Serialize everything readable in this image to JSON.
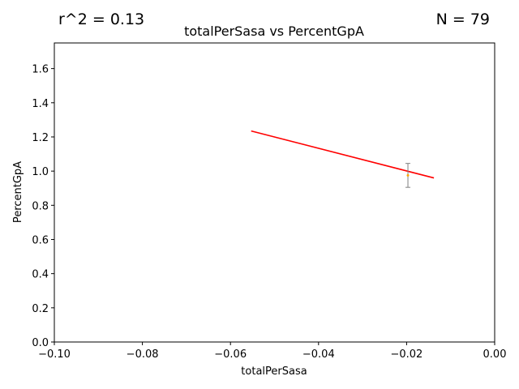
{
  "chart_data": {
    "type": "scatter",
    "title": "totalPerSasa vs PercentGpA",
    "xlabel": "totalPerSasa",
    "ylabel": "PercentGpA",
    "xlim": [
      -0.1,
      0.0
    ],
    "ylim": [
      0.0,
      1.75
    ],
    "xticks": [
      -0.1,
      -0.08,
      -0.06,
      -0.04,
      -0.02,
      0.0
    ],
    "xtick_labels": [
      "−0.10",
      "−0.08",
      "−0.06",
      "−0.04",
      "−0.02",
      "0.00"
    ],
    "yticks": [
      0.0,
      0.2,
      0.4,
      0.6,
      0.8,
      1.0,
      1.2,
      1.4,
      1.6
    ],
    "ytick_labels": [
      "0.0",
      "0.2",
      "0.4",
      "0.6",
      "0.8",
      "1.0",
      "1.2",
      "1.4",
      "1.6"
    ],
    "grid": false,
    "r_squared_text": "r^2 = 0.13",
    "n_text": "N = 79",
    "points": [
      {
        "x": -0.0197,
        "y": 0.975,
        "yerr_low": 0.905,
        "yerr_high": 1.045
      }
    ],
    "fit_line": {
      "x": [
        -0.0553,
        -0.0138
      ],
      "y": [
        1.235,
        0.96
      ],
      "color": "#ff0000"
    },
    "point_color": "#ffa500",
    "errorbar_color": "#808080"
  }
}
